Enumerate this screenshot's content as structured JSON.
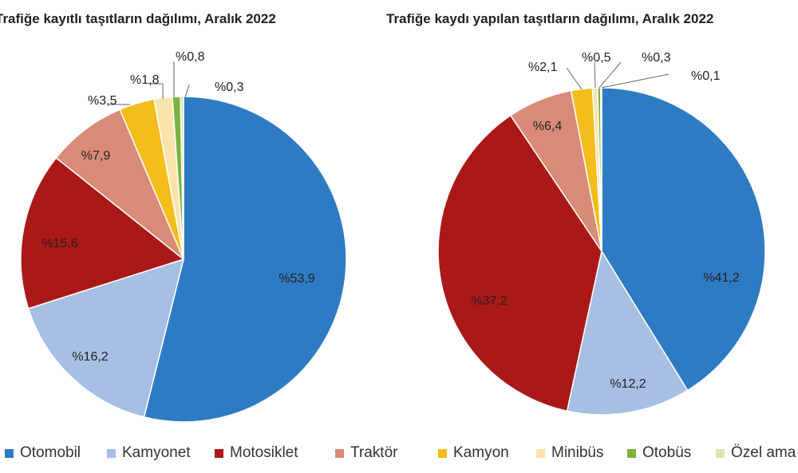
{
  "colors": {
    "Otomobil": "#2e7bc4",
    "Kamyonet": "#a6bfe3",
    "Motosiklet": "#ab1818",
    "Traktör": "#d98b78",
    "Kamyon": "#f5bd1a",
    "Minibüs": "#fbe3ac",
    "Otobüs": "#7cb33f",
    "Özel amaçlı": "#d8e6b0"
  },
  "legend": [
    "Otomobil",
    "Kamyonet",
    "Motosiklet",
    "Traktör",
    "Kamyon",
    "Minibüs",
    "Otobüs",
    "Özel ama"
  ],
  "chart_data": [
    {
      "type": "pie",
      "title": "Trafiğe kayıtlı taşıtların dağılımı, Aralık 2022",
      "categories": [
        "Otomobil",
        "Kamyonet",
        "Motosiklet",
        "Traktör",
        "Kamyon",
        "Minibüs",
        "Otobüs",
        "Özel amaçlı"
      ],
      "values": [
        53.9,
        16.2,
        15.6,
        7.9,
        3.5,
        1.8,
        0.8,
        0.3
      ],
      "labels": [
        "%53,9",
        "%16,2",
        "%15,6",
        "%7,9",
        "%3,5",
        "%1,8",
        "%0,8",
        "%0,3"
      ]
    },
    {
      "type": "pie",
      "title": "Trafiğe kaydı yapılan taşıtların dağılımı, Aralık 2022",
      "categories": [
        "Otomobil",
        "Kamyonet",
        "Motosiklet",
        "Traktör",
        "Kamyon",
        "Minibüs",
        "Otobüs",
        "Özel amaçlı"
      ],
      "values": [
        41.2,
        12.2,
        37.2,
        6.4,
        2.1,
        0.5,
        0.3,
        0.1
      ],
      "labels": [
        "%41,2",
        "%12,2",
        "%37,2",
        "%6,4",
        "%2,1",
        "%0,5",
        "%0,3",
        "%0,1"
      ]
    }
  ]
}
